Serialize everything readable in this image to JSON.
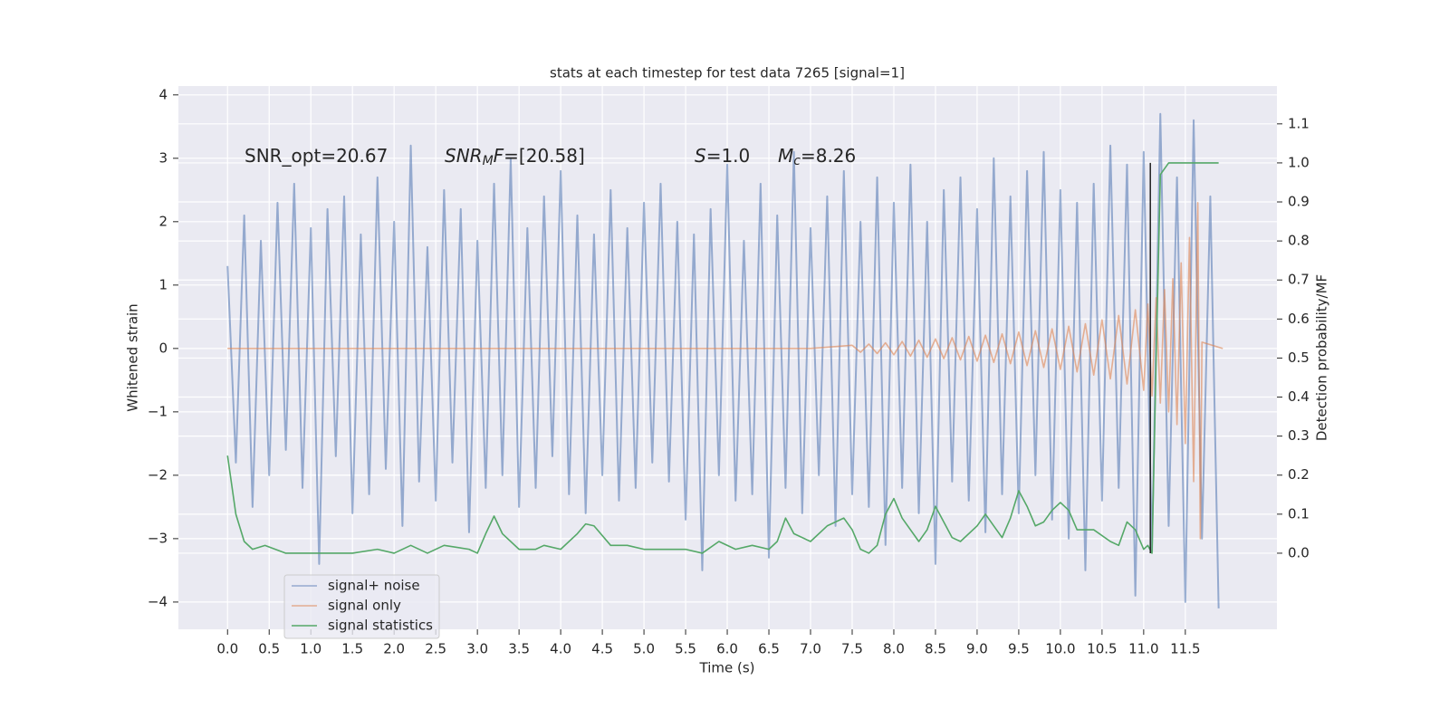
{
  "chart_data": {
    "type": "line",
    "title": "stats at each timestep for test data 7265 [signal=1]",
    "x_label": "Time (s)",
    "y_label": "Whitened strain",
    "y2_label": "Detection probability/MF",
    "xlim": [
      -0.59,
      12.6
    ],
    "ylim": [
      -4.43,
      4.14
    ],
    "y2lim": [
      -0.195,
      1.197
    ],
    "xticks": [
      {
        "value": 0,
        "label": "0.0"
      },
      {
        "value": 0.5,
        "label": "0.5"
      },
      {
        "value": 1,
        "label": "1.0"
      },
      {
        "value": 1.5,
        "label": "1.5"
      },
      {
        "value": 2,
        "label": "2.0"
      },
      {
        "value": 2.5,
        "label": "2.5"
      },
      {
        "value": 3,
        "label": "3.0"
      },
      {
        "value": 3.5,
        "label": "3.5"
      },
      {
        "value": 4,
        "label": "4.0"
      },
      {
        "value": 4.5,
        "label": "4.5"
      },
      {
        "value": 5,
        "label": "5.0"
      },
      {
        "value": 5.5,
        "label": "5.5"
      },
      {
        "value": 6,
        "label": "6.0"
      },
      {
        "value": 6.5,
        "label": "6.5"
      },
      {
        "value": 7,
        "label": "7.0"
      },
      {
        "value": 7.5,
        "label": "7.5"
      },
      {
        "value": 8,
        "label": "8.0"
      },
      {
        "value": 8.5,
        "label": "8.5"
      },
      {
        "value": 9,
        "label": "9.0"
      },
      {
        "value": 9.5,
        "label": "9.5"
      },
      {
        "value": 10,
        "label": "10.0"
      },
      {
        "value": 10.5,
        "label": "10.5"
      },
      {
        "value": 11,
        "label": "11.0"
      },
      {
        "value": 11.5,
        "label": "11.5"
      }
    ],
    "yticks": [
      {
        "value": -4,
        "label": "−4"
      },
      {
        "value": -3,
        "label": "−3"
      },
      {
        "value": -2,
        "label": "−2"
      },
      {
        "value": -1,
        "label": "−1"
      },
      0,
      1,
      2,
      3,
      4
    ],
    "y2ticks": [
      {
        "value": 0,
        "label": "0.0"
      },
      {
        "value": 0.1,
        "label": "0.1"
      },
      {
        "value": 0.2,
        "label": "0.2"
      },
      {
        "value": 0.3,
        "label": "0.3"
      },
      {
        "value": 0.4,
        "label": "0.4"
      },
      {
        "value": 0.5,
        "label": "0.5"
      },
      {
        "value": 0.6,
        "label": "0.6"
      },
      {
        "value": 0.7,
        "label": "0.7"
      },
      {
        "value": 0.8,
        "label": "0.8"
      },
      {
        "value": 0.9,
        "label": "0.9"
      },
      {
        "value": 1,
        "label": "1.0"
      },
      {
        "value": 1.1,
        "label": "1.1"
      }
    ],
    "grid": true,
    "legend": "lower left",
    "annotations": [
      [
        {
          "text": "SNR_opt=20.67"
        }
      ],
      [
        {
          "text": "SNR",
          "italic": true
        },
        {
          "text": "M",
          "italic": true,
          "sub": true
        },
        {
          "text": "F",
          "italic": true
        },
        {
          "text": "=[20.58]"
        }
      ],
      [
        {
          "text": "S",
          "italic": true
        },
        {
          "text": "=1.0"
        }
      ],
      [
        {
          "text": "M",
          "italic": true
        },
        {
          "text": "c",
          "italic": true,
          "sub": true
        },
        {
          "text": "=8.26"
        }
      ]
    ],
    "series": [
      {
        "name": "signal+ noise",
        "color": "#4c72b0",
        "x": [
          0,
          0.1,
          0.2,
          0.3,
          0.4,
          0.5,
          0.6,
          0.7,
          0.8,
          0.9,
          1,
          1.1,
          1.2,
          1.3,
          1.4,
          1.5,
          1.6,
          1.7,
          1.8,
          1.9,
          2,
          2.1,
          2.2,
          2.3,
          2.4,
          2.5,
          2.6,
          2.7,
          2.8,
          2.9,
          3,
          3.1,
          3.2,
          3.3,
          3.4,
          3.5,
          3.6,
          3.7,
          3.8,
          3.9,
          4,
          4.1,
          4.2,
          4.3,
          4.4,
          4.5,
          4.6,
          4.7,
          4.8,
          4.9,
          5,
          5.1,
          5.2,
          5.3,
          5.4,
          5.5,
          5.6,
          5.7,
          5.8,
          5.9,
          6,
          6.1,
          6.2,
          6.3,
          6.4,
          6.5,
          6.6,
          6.7,
          6.8,
          6.9,
          7,
          7.1,
          7.2,
          7.3,
          7.4,
          7.5,
          7.6,
          7.7,
          7.8,
          7.9,
          8,
          8.1,
          8.2,
          8.3,
          8.4,
          8.5,
          8.6,
          8.7,
          8.8,
          8.9,
          9,
          9.1,
          9.2,
          9.3,
          9.4,
          9.5,
          9.6,
          9.7,
          9.8,
          9.9,
          10,
          10.1,
          10.2,
          10.3,
          10.4,
          10.5,
          10.6,
          10.7,
          10.8,
          10.9,
          11,
          11.1,
          11.2,
          11.3,
          11.4,
          11.5,
          11.6,
          11.7,
          11.8,
          11.9
        ],
        "values": [
          1.3,
          -1.8,
          2.1,
          -2.5,
          1.7,
          -2.0,
          2.3,
          -1.6,
          2.6,
          -2.2,
          1.9,
          -3.4,
          2.2,
          -1.7,
          2.4,
          -2.6,
          1.8,
          -2.3,
          2.7,
          -1.9,
          2.0,
          -2.8,
          3.2,
          -2.1,
          1.6,
          -2.4,
          2.5,
          -1.8,
          2.2,
          -2.9,
          1.7,
          -2.2,
          2.6,
          -2.0,
          3.0,
          -2.5,
          1.9,
          -2.2,
          2.4,
          -1.7,
          2.8,
          -2.3,
          2.1,
          -2.6,
          1.8,
          -2.0,
          2.5,
          -2.4,
          1.9,
          -2.2,
          2.3,
          -1.8,
          2.6,
          -2.1,
          2.0,
          -2.7,
          1.8,
          -3.5,
          2.2,
          -2.0,
          2.9,
          -2.4,
          1.7,
          -2.3,
          2.6,
          -3.3,
          2.1,
          -2.2,
          3.1,
          -2.6,
          1.9,
          -2.0,
          2.4,
          -2.8,
          2.8,
          -2.3,
          2.0,
          -2.5,
          2.7,
          -3.1,
          2.3,
          -2.2,
          2.9,
          -2.6,
          2.0,
          -3.4,
          2.5,
          -2.1,
          2.7,
          -2.4,
          2.2,
          -2.9,
          3.0,
          -2.3,
          2.4,
          -2.6,
          2.8,
          -2.0,
          3.1,
          -2.7,
          2.5,
          -3.0,
          2.3,
          -3.5,
          2.6,
          -2.4,
          3.2,
          -2.2,
          2.9,
          -3.9,
          3.1,
          -3.2,
          3.7,
          -2.8,
          2.7,
          -4.0,
          3.6,
          -3.0,
          2.4,
          -4.1
        ]
      },
      {
        "name": "signal only",
        "color": "#dd8452",
        "x": [
          0,
          7.0,
          7.5,
          7.6,
          7.7,
          7.8,
          7.9,
          8.0,
          8.1,
          8.2,
          8.3,
          8.4,
          8.5,
          8.6,
          8.7,
          8.8,
          8.9,
          9.0,
          9.1,
          9.2,
          9.3,
          9.4,
          9.5,
          9.6,
          9.7,
          9.8,
          9.9,
          10.0,
          10.1,
          10.2,
          10.3,
          10.4,
          10.5,
          10.6,
          10.7,
          10.8,
          10.9,
          11.0,
          11.05,
          11.1,
          11.15,
          11.2,
          11.25,
          11.3,
          11.35,
          11.4,
          11.45,
          11.5,
          11.55,
          11.6,
          11.65,
          11.68,
          11.7,
          11.95
        ],
        "values": [
          0,
          0,
          0.05,
          -0.06,
          0.07,
          -0.08,
          0.09,
          -0.1,
          0.11,
          -0.12,
          0.13,
          -0.14,
          0.15,
          -0.16,
          0.17,
          -0.18,
          0.19,
          -0.2,
          0.21,
          -0.22,
          0.23,
          -0.24,
          0.26,
          -0.27,
          0.28,
          -0.3,
          0.31,
          -0.33,
          0.35,
          -0.37,
          0.39,
          -0.42,
          0.45,
          -0.48,
          0.52,
          -0.56,
          0.61,
          -0.66,
          0.7,
          -0.75,
          0.8,
          -0.86,
          0.93,
          -1.0,
          1.1,
          -1.2,
          1.35,
          -1.5,
          1.75,
          -2.1,
          2.3,
          -3.0,
          0.1,
          0
        ]
      },
      {
        "name": "signal statistics",
        "color": "#55a868",
        "axis": "y2",
        "x": [
          0,
          0.1,
          0.2,
          0.3,
          0.45,
          0.7,
          1.0,
          1.2,
          1.5,
          1.8,
          2.0,
          2.2,
          2.4,
          2.6,
          2.9,
          3.0,
          3.1,
          3.2,
          3.3,
          3.5,
          3.7,
          3.8,
          4.0,
          4.2,
          4.3,
          4.4,
          4.6,
          4.8,
          5.0,
          5.5,
          5.7,
          5.9,
          6.1,
          6.3,
          6.5,
          6.6,
          6.7,
          6.8,
          7.0,
          7.2,
          7.4,
          7.5,
          7.6,
          7.7,
          7.8,
          7.9,
          8.0,
          8.1,
          8.3,
          8.4,
          8.5,
          8.6,
          8.7,
          8.8,
          9.0,
          9.1,
          9.2,
          9.3,
          9.4,
          9.5,
          9.6,
          9.7,
          9.8,
          9.9,
          10.0,
          10.1,
          10.2,
          10.4,
          10.6,
          10.7,
          10.8,
          10.9,
          11.0,
          11.05,
          11.1,
          11.15,
          11.2,
          11.3,
          11.5,
          11.9
        ],
        "values": [
          0.25,
          0.1,
          0.03,
          0.01,
          0.02,
          0.0,
          0.0,
          0.0,
          0.0,
          0.01,
          0.0,
          0.02,
          0.0,
          0.02,
          0.01,
          0.0,
          0.05,
          0.095,
          0.05,
          0.01,
          0.01,
          0.02,
          0.01,
          0.05,
          0.075,
          0.07,
          0.02,
          0.02,
          0.01,
          0.01,
          0.0,
          0.03,
          0.01,
          0.02,
          0.01,
          0.03,
          0.09,
          0.05,
          0.03,
          0.07,
          0.09,
          0.06,
          0.01,
          0.0,
          0.02,
          0.1,
          0.14,
          0.09,
          0.03,
          0.06,
          0.12,
          0.08,
          0.04,
          0.03,
          0.07,
          0.1,
          0.07,
          0.04,
          0.09,
          0.16,
          0.12,
          0.07,
          0.08,
          0.11,
          0.13,
          0.11,
          0.06,
          0.06,
          0.03,
          0.02,
          0.08,
          0.06,
          0.01,
          0.02,
          0.0,
          0.5,
          0.97,
          1.0,
          1.0,
          1.0
        ]
      }
    ],
    "vline": {
      "x": 11.08,
      "y2": [
        0,
        1
      ],
      "color": "#222222"
    }
  }
}
